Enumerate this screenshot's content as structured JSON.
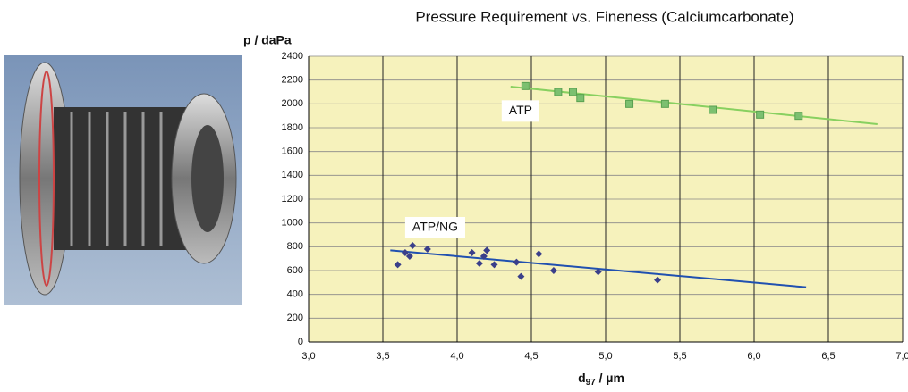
{
  "chart_data": {
    "type": "scatter",
    "title": "Pressure Requirement vs. Fineness     (Calciumcarbonate)",
    "ylabel": "p / daPa",
    "xlabel": {
      "main": "d",
      "sub": "97",
      "rest": " / µm"
    },
    "xlim": [
      3,
      7
    ],
    "ylim": [
      0,
      2400
    ],
    "xticks": [
      {
        "value": 3,
        "label": "3,0"
      },
      {
        "value": 3.5,
        "label": "3,5"
      },
      {
        "value": 4,
        "label": "4,0"
      },
      {
        "value": 4.5,
        "label": "4,5"
      },
      {
        "value": 5,
        "label": "5,0"
      },
      {
        "value": 5.5,
        "label": "5,5"
      },
      {
        "value": 6,
        "label": "6,0"
      },
      {
        "value": 6.5,
        "label": "6,5"
      },
      {
        "value": 7,
        "label": "7,0"
      }
    ],
    "yticks": [
      0,
      200,
      400,
      600,
      800,
      1000,
      1200,
      1400,
      1600,
      1800,
      2000,
      2200,
      2400
    ],
    "grid": true,
    "background": "#f6f2bc",
    "series": [
      {
        "name": "ATP",
        "color": "#58a050",
        "marker": "square",
        "x": [
          4.46,
          4.68,
          4.78,
          4.83,
          5.16,
          5.4,
          5.72,
          6.04,
          6.3
        ],
        "values": [
          2150,
          2100,
          2100,
          2050,
          2000,
          2000,
          1950,
          1910,
          1900
        ],
        "trend": {
          "color": "#88d060",
          "x": [
            4.36,
            6.83
          ],
          "values": [
            2145,
            1830
          ]
        },
        "label_at": [
          4.3,
          1940
        ]
      },
      {
        "name": "ATP/NG",
        "color": "#3a3f8a",
        "marker": "diamond",
        "x": [
          3.6,
          3.65,
          3.68,
          3.7,
          3.8,
          4.1,
          4.15,
          4.18,
          4.2,
          4.25,
          4.4,
          4.43,
          4.55,
          4.65,
          4.95,
          5.35
        ],
        "values": [
          650,
          750,
          720,
          810,
          780,
          750,
          660,
          720,
          770,
          650,
          670,
          550,
          740,
          600,
          590,
          520
        ],
        "trend": {
          "color": "#2050b0",
          "x": [
            3.55,
            6.35
          ],
          "values": [
            770,
            460
          ]
        },
        "label_at": [
          3.65,
          960
        ]
      }
    ]
  }
}
